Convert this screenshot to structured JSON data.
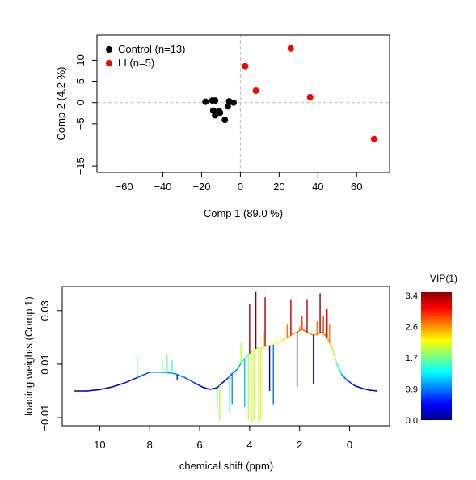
{
  "chart_data": [
    {
      "type": "scatter",
      "xlabel": "Comp 1 (89.0 %)",
      "ylabel": "Comp 2 (4.2 %)",
      "xlim": [
        -74,
        77
      ],
      "ylim": [
        -16.5,
        16
      ],
      "x_ticks": [
        -60,
        -40,
        -20,
        0,
        20,
        40,
        60
      ],
      "y_ticks": [
        -15,
        -5,
        0,
        5,
        10
      ],
      "reference_lines": {
        "x": 0,
        "y": 0
      },
      "legend": "top-left",
      "series": [
        {
          "name": "Control (n=13)",
          "color": "#000000",
          "points": [
            {
              "x": -18,
              "y": 0.2
            },
            {
              "x": -14.5,
              "y": 0.5
            },
            {
              "x": -13,
              "y": 0.5
            },
            {
              "x": -14,
              "y": -1.9
            },
            {
              "x": -12.5,
              "y": -2.3
            },
            {
              "x": -13,
              "y": -3.0
            },
            {
              "x": -11,
              "y": -2.0
            },
            {
              "x": -10.5,
              "y": -2.4
            },
            {
              "x": -8,
              "y": -4.1
            },
            {
              "x": -6.5,
              "y": -0.9
            },
            {
              "x": -5.5,
              "y": 0.2
            },
            {
              "x": -5.8,
              "y": 0.3
            },
            {
              "x": -3.5,
              "y": 0.0
            }
          ]
        },
        {
          "name": "LI (n=5)",
          "color": "#ff0000",
          "points": [
            {
              "x": 2.5,
              "y": 8.6
            },
            {
              "x": 8,
              "y": 2.8
            },
            {
              "x": 26,
              "y": 12.8
            },
            {
              "x": 36,
              "y": 1.3
            },
            {
              "x": 69,
              "y": -8.6
            }
          ]
        }
      ]
    },
    {
      "type": "line",
      "xlabel": "chemical shift (ppm)",
      "ylabel": "loading weights (Comp 1)",
      "xlim": [
        11.5,
        -1.6
      ],
      "ylim": [
        -0.013,
        0.039
      ],
      "x_ticks": [
        10,
        8,
        6,
        4,
        2,
        0
      ],
      "y_ticks": [
        -0.01,
        0.01,
        0.03
      ],
      "y_tick_labels": [
        "-0.01",
        "0.01",
        "0.03"
      ],
      "colorbar": {
        "title": "VIP(1)",
        "ticks": [
          "3.4",
          "2.6",
          "1.7",
          "0.9",
          "0.0"
        ],
        "colors": [
          "#00008b",
          "#0000ff",
          "#0080ff",
          "#00ffff",
          "#80ff80",
          "#ffff00",
          "#ff8000",
          "#ff0000",
          "#8b0000"
        ]
      },
      "profile_ppm": [
        11,
        10.5,
        10,
        9.5,
        9,
        8.5,
        8,
        7.5,
        7,
        6.6,
        6.2,
        5.9,
        5.6,
        5.3,
        5.1,
        4.9,
        4.7,
        4.5,
        4.3,
        4.1,
        3.9,
        3.7,
        3.5,
        3.3,
        3.1,
        2.9,
        2.7,
        2.5,
        2.3,
        2.1,
        1.9,
        1.7,
        1.5,
        1.3,
        1.1,
        0.9,
        0.7,
        0.5,
        0.3,
        0.1,
        -0.2,
        -0.5,
        -0.8,
        -1.1
      ],
      "profile_weight": [
        0.0,
        0.0,
        0.0005,
        0.0015,
        0.003,
        0.005,
        0.007,
        0.007,
        0.0065,
        0.005,
        0.003,
        0.0015,
        0.0006,
        0.0012,
        0.003,
        0.0045,
        0.0065,
        0.008,
        0.011,
        0.013,
        0.015,
        0.016,
        0.016,
        0.017,
        0.017,
        0.018,
        0.019,
        0.02,
        0.021,
        0.022,
        0.023,
        0.022,
        0.021,
        0.021,
        0.022,
        0.02,
        0.016,
        0.01,
        0.006,
        0.004,
        0.002,
        0.001,
        0.0003,
        0.0
      ],
      "spike_ppm": [
        8.5,
        7.5,
        7.3,
        7.1,
        6.9,
        5.3,
        5.2,
        4.8,
        4.7,
        4.35,
        4.2,
        4.05,
        4.0,
        3.9,
        3.82,
        3.75,
        3.65,
        3.55,
        3.45,
        3.38,
        3.2,
        3.05,
        2.5,
        2.35,
        2.1,
        2.0,
        1.9,
        1.7,
        1.45,
        1.3,
        1.18,
        1.05,
        0.9,
        0.8
      ],
      "spike_weight": [
        0.013,
        0.012,
        0.0135,
        0.0115,
        0.004,
        -0.006,
        -0.011,
        -0.008,
        -0.005,
        0.018,
        -0.006,
        -0.011,
        0.0325,
        -0.012,
        -0.011,
        0.037,
        -0.012,
        -0.011,
        0.022,
        0.035,
        0.0,
        -0.005,
        0.025,
        0.034,
        0.0015,
        0.024,
        0.028,
        0.034,
        0.0025,
        0.026,
        0.0365,
        0.028,
        0.0305,
        0.025
      ],
      "spike_vip": [
        1.6,
        1.5,
        1.7,
        1.5,
        0.5,
        1.2,
        1.9,
        1.4,
        0.9,
        1.9,
        1.1,
        1.9,
        3.3,
        2.0,
        1.9,
        3.4,
        2.1,
        1.9,
        2.4,
        3.3,
        0.3,
        0.8,
        2.6,
        3.2,
        0.4,
        2.5,
        2.8,
        3.2,
        0.5,
        2.6,
        3.4,
        2.8,
        3.0,
        2.6
      ]
    }
  ]
}
